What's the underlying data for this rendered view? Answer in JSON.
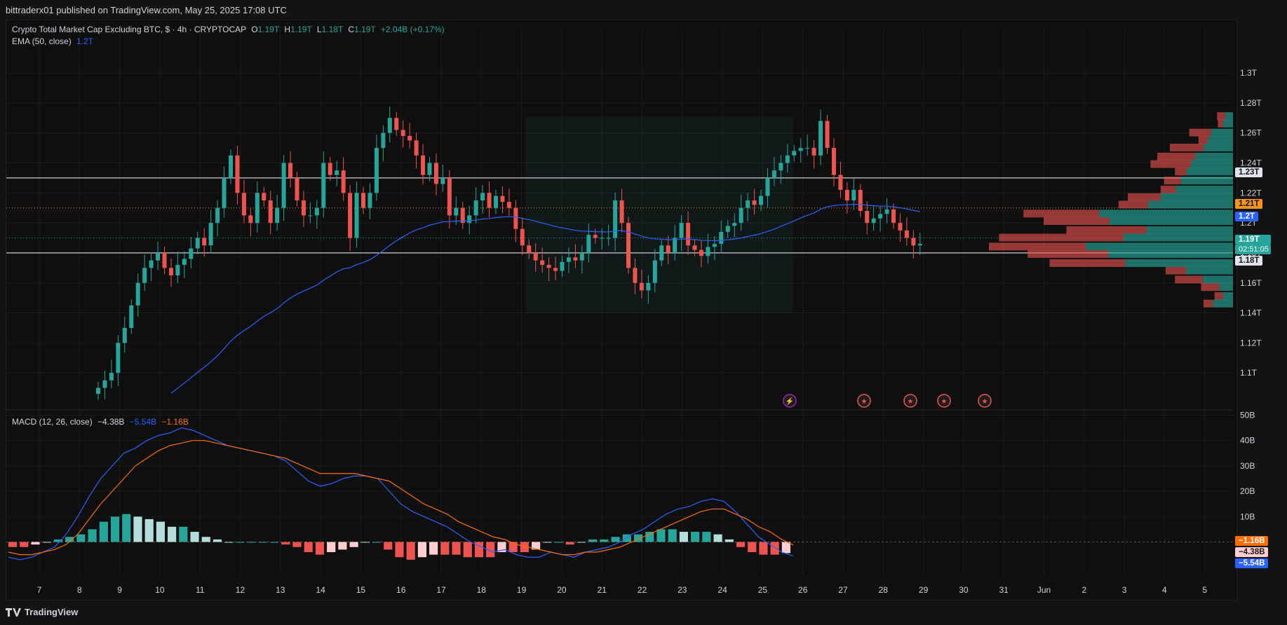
{
  "header": {
    "published": "bittraderx01 published on TradingView.com, May 25, 2025 17:08 UTC"
  },
  "legend": {
    "symbol": "Crypto Total Market Cap Excluding BTC, $ · 4h · CRYPTOCAP",
    "o_key": "O",
    "o": "1.19T",
    "h_key": "H",
    "h": "1.19T",
    "l_key": "L",
    "l": "1.18T",
    "c_key": "C",
    "c": "1.19T",
    "change": "+2.04B (+0.17%)",
    "ema_label": "EMA (50, close)",
    "ema_value": "1.2T",
    "macd_label": "MACD (12, 26, close)",
    "macd_v1": "−4.38B",
    "macd_v2": "−5.54B",
    "macd_v3": "−1.16B"
  },
  "footer": {
    "brand": "TradingView"
  },
  "price_axis": {
    "ticks": [
      "1.3T",
      "1.28T",
      "1.26T",
      "1.24T",
      "1.22T",
      "1.2T",
      "1.18T",
      "1.16T",
      "1.14T",
      "1.12T",
      "1.1T"
    ],
    "tags": {
      "level_high": "1.23T",
      "level_orange": "1.21T",
      "ema": "1.2T",
      "last": "1.19T",
      "countdown": "02:51:05",
      "level_low": "1.18T"
    }
  },
  "macd_axis": {
    "ticks": [
      "50B",
      "40B",
      "30B",
      "20B",
      "10B"
    ],
    "tags": {
      "signal": "−1.16B",
      "hist": "−4.38B",
      "macd": "−5.54B"
    }
  },
  "time_axis": [
    "7",
    "8",
    "9",
    "10",
    "11",
    "12",
    "13",
    "14",
    "15",
    "16",
    "17",
    "18",
    "19",
    "20",
    "21",
    "22",
    "23",
    "24",
    "25",
    "26",
    "27",
    "28",
    "29",
    "30",
    "31",
    "Jun",
    "2",
    "3",
    "4",
    "5"
  ],
  "colors": {
    "up": "#26a69a",
    "down": "#ef5350",
    "ema": "#2962ff",
    "macd": "#2962ff",
    "signal": "#ff6d00",
    "orange_tag": "#f7931a",
    "bg": "#0f0f0f",
    "grid": "#1c1c1c"
  },
  "chart_data": [
    {
      "type": "candlestick",
      "title": "Crypto Total Market Cap Excluding BTC, $ · 4h · CRYPTOCAP",
      "unit": "T USD",
      "ylim": [
        1.087,
        1.315
      ],
      "horizontal_levels": [
        1.23,
        1.21,
        1.18
      ],
      "series": [
        {
          "name": "EMA (50, close)",
          "last": 1.2
        }
      ],
      "closes_4h": [
        1.09,
        1.095,
        1.1,
        1.12,
        1.13,
        1.145,
        1.16,
        1.17,
        1.175,
        1.18,
        1.17,
        1.165,
        1.172,
        1.176,
        1.183,
        1.19,
        1.185,
        1.2,
        1.21,
        1.23,
        1.245,
        1.22,
        1.205,
        1.2,
        1.22,
        1.215,
        1.2,
        1.21,
        1.24,
        1.23,
        1.215,
        1.205,
        1.205,
        1.21,
        1.24,
        1.232,
        1.235,
        1.22,
        1.19,
        1.22,
        1.21,
        1.22,
        1.25,
        1.26,
        1.27,
        1.262,
        1.258,
        1.255,
        1.245,
        1.232,
        1.24,
        1.226,
        1.23,
        1.205,
        1.21,
        1.2,
        1.205,
        1.215,
        1.22,
        1.21,
        1.218,
        1.214,
        1.21,
        1.196,
        1.185,
        1.18,
        1.175,
        1.172,
        1.17,
        1.168,
        1.174,
        1.177,
        1.175,
        1.18,
        1.192,
        1.19,
        1.19,
        1.19,
        1.215,
        1.2,
        1.17,
        1.16,
        1.155,
        1.16,
        1.175,
        1.185,
        1.18,
        1.19,
        1.2,
        1.185,
        1.182,
        1.178,
        1.184,
        1.186,
        1.194,
        1.198,
        1.2,
        1.21,
        1.215,
        1.212,
        1.218,
        1.23,
        1.235,
        1.24,
        1.245,
        1.248,
        1.25,
        1.25,
        1.245,
        1.268,
        1.25,
        1.232,
        1.222,
        1.215,
        1.222,
        1.208,
        1.2,
        1.203,
        1.206,
        1.209,
        1.2,
        1.195,
        1.19,
        1.185,
        1.186
      ]
    },
    {
      "type": "volume_profile",
      "title": "Visible range volume profile",
      "levels": [
        1.271,
        1.266,
        1.26,
        1.255,
        1.25,
        1.244,
        1.239,
        1.234,
        1.228,
        1.222,
        1.217,
        1.212,
        1.206,
        1.201,
        1.195,
        1.19,
        1.184,
        1.179,
        1.173,
        1.168,
        1.162,
        1.157,
        1.151,
        1.146
      ],
      "buy": [
        9,
        12,
        26,
        30,
        35,
        45,
        50,
        55,
        62,
        68,
        86,
        101,
        159,
        147,
        103,
        130,
        175,
        148,
        128,
        56,
        36,
        16,
        12,
        24
      ],
      "sell": [
        10,
        6,
        26,
        11,
        40,
        45,
        48,
        14,
        20,
        18,
        39,
        35,
        90,
        78,
        95,
        148,
        115,
        96,
        90,
        24,
        33,
        22,
        10,
        11
      ]
    },
    {
      "type": "macd",
      "title": "MACD (12, 26, close)",
      "unit": "B USD",
      "ylim": [
        -10,
        50
      ],
      "series": [
        {
          "name": "MACD",
          "values": [
            -6,
            -7,
            -6,
            -4,
            -2,
            3,
            10,
            18,
            25,
            30,
            35,
            37,
            40,
            42,
            43,
            45,
            44,
            42,
            40,
            38,
            37,
            36,
            35,
            34,
            32,
            28,
            24,
            22,
            23,
            25,
            26,
            26,
            25,
            20,
            15,
            12,
            10,
            8,
            6,
            3,
            0,
            -2,
            -4,
            -3,
            -5,
            -6,
            -6,
            -4,
            -5,
            -6,
            -4,
            -3,
            -2,
            0,
            3,
            5,
            8,
            11,
            13,
            14,
            16,
            17,
            16,
            12,
            7,
            2,
            -1,
            -4,
            -5.54
          ]
        },
        {
          "name": "Signal",
          "values": [
            -4,
            -5,
            -5,
            -4,
            -3,
            -1,
            3,
            9,
            15,
            20,
            25,
            30,
            33,
            36,
            38,
            39,
            40,
            40,
            39,
            38,
            37,
            36,
            35,
            34,
            33,
            31,
            29,
            27,
            27,
            27,
            27,
            26,
            25,
            24,
            21,
            18,
            15,
            13,
            11,
            8,
            6,
            4,
            2,
            1,
            -1,
            -2,
            -3,
            -4,
            -5,
            -5,
            -4,
            -4,
            -3,
            -2,
            0,
            2,
            4,
            6,
            8,
            10,
            12,
            13,
            13,
            11,
            9,
            6,
            4,
            1,
            -1.16
          ]
        }
      ],
      "histogram": [
        -2,
        -2,
        -1,
        0,
        1,
        2,
        3,
        5,
        8,
        10,
        11,
        10,
        9,
        8,
        6,
        6,
        4,
        2,
        1,
        0,
        0,
        0,
        0,
        0,
        -1,
        -2,
        -4,
        -5,
        -4,
        -3,
        -2,
        0,
        0,
        -3,
        -6,
        -7,
        -6,
        -5,
        -5,
        -5,
        -6,
        -6,
        -6,
        -4,
        -4,
        -4,
        -3,
        0,
        0,
        -1,
        0,
        1,
        1,
        2,
        3,
        3,
        4,
        5,
        5,
        4,
        4,
        4,
        3,
        1,
        -2,
        -4,
        -5,
        -5,
        -4.38
      ]
    }
  ]
}
